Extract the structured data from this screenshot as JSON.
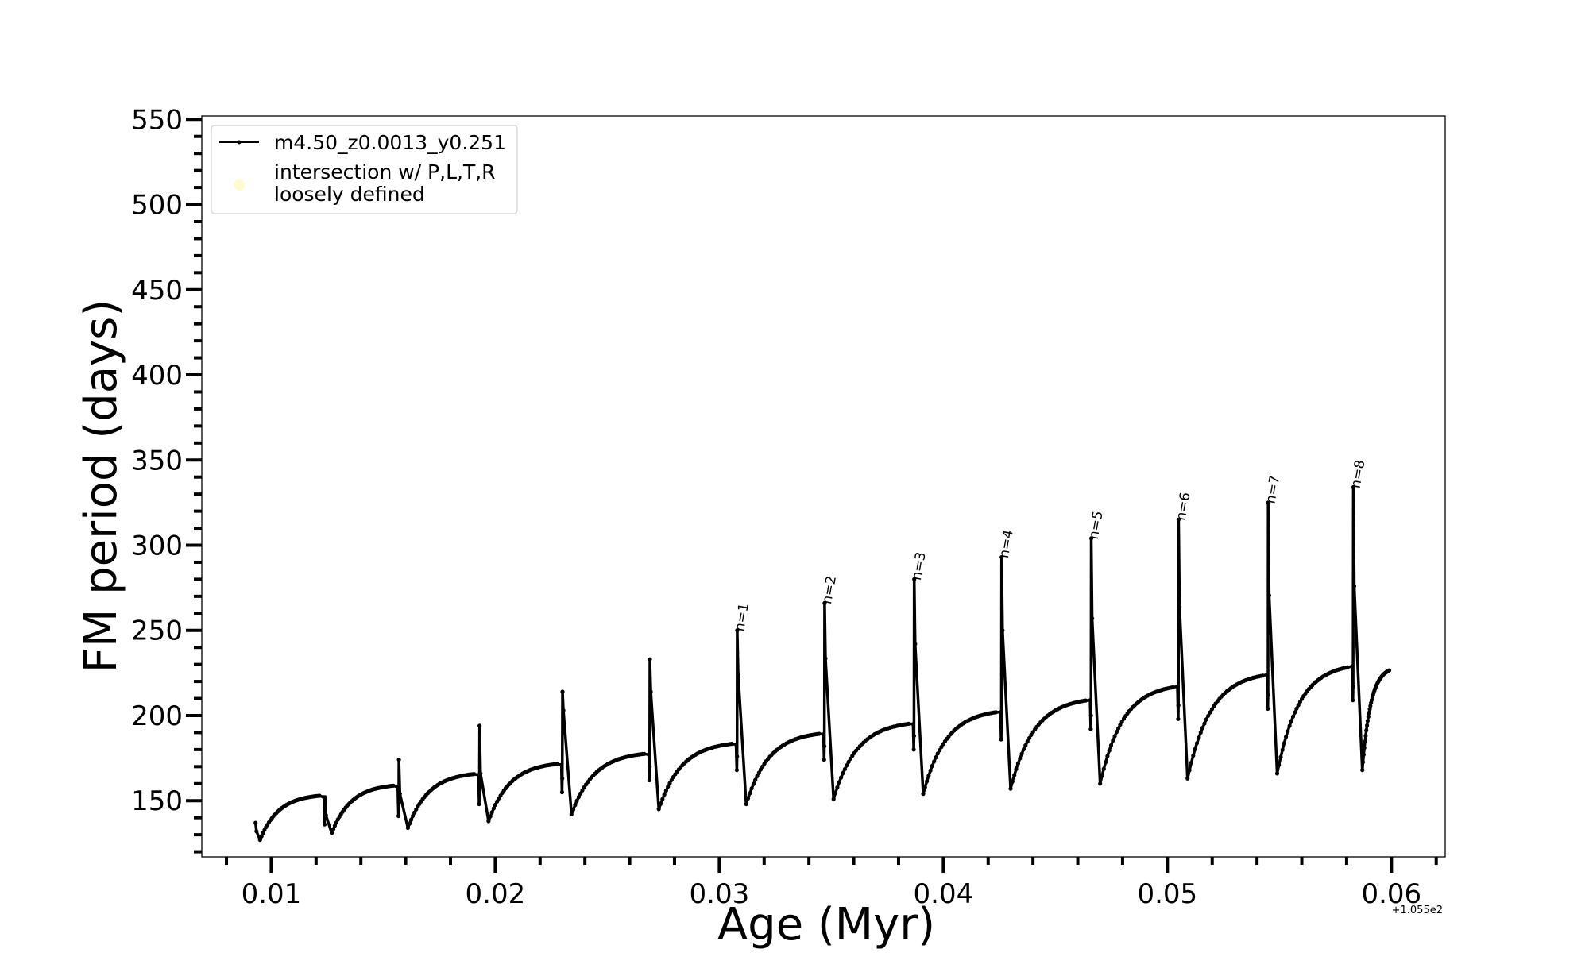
{
  "chart_data": {
    "type": "line",
    "xlabel": "Age (Myr)",
    "ylabel": "FM period (days)",
    "x_offset_label": "+1.055e2",
    "xlim": [
      0.0069,
      0.0624
    ],
    "ylim": [
      117,
      552
    ],
    "x_ticks": [
      {
        "value": 0.01,
        "label": "0.01"
      },
      {
        "value": 0.02,
        "label": "0.02"
      },
      {
        "value": 0.03,
        "label": "0.03"
      },
      {
        "value": 0.04,
        "label": "0.04"
      },
      {
        "value": 0.05,
        "label": "0.05"
      },
      {
        "value": 0.06,
        "label": "0.06"
      }
    ],
    "y_ticks": [
      {
        "value": 150,
        "label": "150"
      },
      {
        "value": 200,
        "label": "200"
      },
      {
        "value": 250,
        "label": "250"
      },
      {
        "value": 300,
        "label": "300"
      },
      {
        "value": 350,
        "label": "350"
      },
      {
        "value": 400,
        "label": "400"
      },
      {
        "value": 450,
        "label": "450"
      },
      {
        "value": 500,
        "label": "500"
      },
      {
        "value": 550,
        "label": "550"
      }
    ],
    "legend": {
      "position": "top-left",
      "entries": [
        {
          "label": "m4.50_z0.0013_y0.251",
          "marker": "line-dot",
          "color": "#000000"
        },
        {
          "label_lines": [
            "intersection w/ P,L,T,R",
            "loosely defined"
          ],
          "marker": "circle",
          "color": "#fffacd"
        }
      ]
    },
    "series": [
      {
        "name": "m4.50_z0.0013_y0.251",
        "color": "#000000",
        "pulse_cycles": [
          {
            "start": 0.0093,
            "start_value": 137,
            "trough_x": 0.0095,
            "trough_value": 127,
            "plateau_value": 154,
            "pre_spike_dip": 136,
            "spike_x": 0.0124,
            "spike_value": 152
          },
          {
            "start": 0.0124,
            "start_value": 152,
            "trough_x": 0.0127,
            "trough_value": 131,
            "plateau_value": 160,
            "pre_spike_dip": 141,
            "spike_x": 0.0157,
            "spike_value": 174
          },
          {
            "start": 0.0157,
            "start_value": 174,
            "trough_x": 0.0161,
            "trough_value": 134,
            "plateau_value": 167,
            "pre_spike_dip": 148,
            "spike_x": 0.0193,
            "spike_value": 194
          },
          {
            "start": 0.0193,
            "start_value": 194,
            "trough_x": 0.0197,
            "trough_value": 138,
            "plateau_value": 173,
            "pre_spike_dip": 155,
            "spike_x": 0.023,
            "spike_value": 214
          },
          {
            "start": 0.023,
            "start_value": 214,
            "trough_x": 0.0234,
            "trough_value": 142,
            "plateau_value": 179,
            "pre_spike_dip": 162,
            "spike_x": 0.0269,
            "spike_value": 233
          },
          {
            "start": 0.0269,
            "start_value": 233,
            "trough_x": 0.0273,
            "trough_value": 145,
            "plateau_value": 185,
            "pre_spike_dip": 168,
            "spike_x": 0.0308,
            "spike_value": 250
          },
          {
            "start": 0.0308,
            "start_value": 250,
            "trough_x": 0.0312,
            "trough_value": 148,
            "plateau_value": 191,
            "pre_spike_dip": 174,
            "spike_x": 0.0347,
            "spike_value": 266
          },
          {
            "start": 0.0347,
            "start_value": 266,
            "trough_x": 0.0351,
            "trough_value": 151,
            "plateau_value": 197,
            "pre_spike_dip": 180,
            "spike_x": 0.0387,
            "spike_value": 280
          },
          {
            "start": 0.0387,
            "start_value": 280,
            "trough_x": 0.0391,
            "trough_value": 154,
            "plateau_value": 204,
            "pre_spike_dip": 186,
            "spike_x": 0.0426,
            "spike_value": 293
          },
          {
            "start": 0.0426,
            "start_value": 293,
            "trough_x": 0.043,
            "trough_value": 157,
            "plateau_value": 211,
            "pre_spike_dip": 192,
            "spike_x": 0.0466,
            "spike_value": 304
          },
          {
            "start": 0.0466,
            "start_value": 304,
            "trough_x": 0.047,
            "trough_value": 160,
            "plateau_value": 219,
            "pre_spike_dip": 198,
            "spike_x": 0.0505,
            "spike_value": 315
          },
          {
            "start": 0.0505,
            "start_value": 315,
            "trough_x": 0.0509,
            "trough_value": 163,
            "plateau_value": 226,
            "pre_spike_dip": 204,
            "spike_x": 0.0545,
            "spike_value": 325
          },
          {
            "start": 0.0545,
            "start_value": 325,
            "trough_x": 0.0549,
            "trough_value": 166,
            "plateau_value": 231,
            "pre_spike_dip": 209,
            "spike_x": 0.0583,
            "spike_value": 334
          },
          {
            "start": 0.0583,
            "start_value": 334,
            "trough_x": 0.0587,
            "trough_value": 168,
            "plateau_value": 229,
            "pre_spike_dip": null,
            "spike_x": 0.0599,
            "spike_value": 229
          }
        ]
      }
    ],
    "annotations": [
      {
        "text": "n=1",
        "x": 0.0308,
        "y": 250
      },
      {
        "text": "n=2",
        "x": 0.0347,
        "y": 266
      },
      {
        "text": "n=3",
        "x": 0.0387,
        "y": 280
      },
      {
        "text": "n=4",
        "x": 0.0426,
        "y": 293
      },
      {
        "text": "n=5",
        "x": 0.0466,
        "y": 304
      },
      {
        "text": "n=6",
        "x": 0.0505,
        "y": 315
      },
      {
        "text": "n=7",
        "x": 0.0545,
        "y": 325
      },
      {
        "text": "n=8",
        "x": 0.0583,
        "y": 334
      }
    ],
    "grid": false
  }
}
